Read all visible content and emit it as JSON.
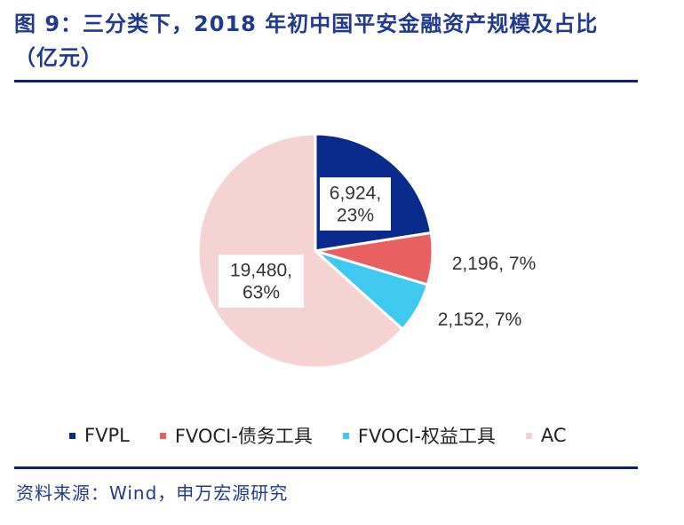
{
  "figure": {
    "title": "图 9：三分类下，2018 年初中国平安金融资产规模及占比（亿元）",
    "source": "资料来源：Wind，申万宏源研究"
  },
  "chart_data": {
    "type": "pie",
    "unit": "亿元",
    "slices": [
      {
        "name": "FVPL",
        "value": 6924,
        "percent": 23,
        "label": "6,924,\n23%",
        "color": "#0a2a8c"
      },
      {
        "name": "FVOCI-债务工具",
        "value": 2196,
        "percent": 7,
        "label": "2,196, 7%",
        "color": "#e8605f"
      },
      {
        "name": "FVOCI-权益工具",
        "value": 2152,
        "percent": 7,
        "label": "2,152, 7%",
        "color": "#3fc8f0"
      },
      {
        "name": "AC",
        "value": 19480,
        "percent": 63,
        "label": "19,480,\n63%",
        "color": "#f6d3d3"
      }
    ],
    "legend_position": "bottom"
  }
}
